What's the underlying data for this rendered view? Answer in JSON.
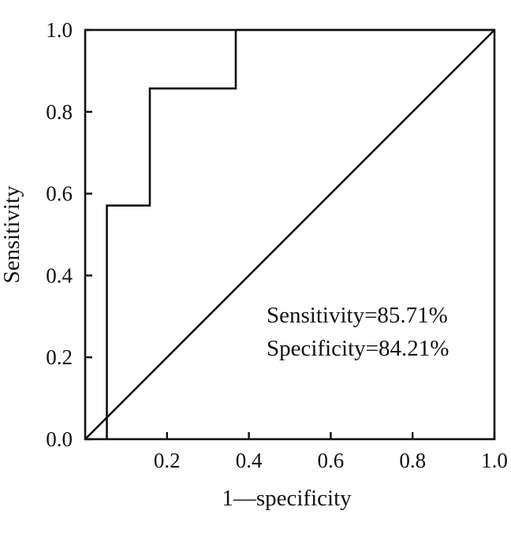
{
  "chart_data": {
    "type": "line",
    "title": "",
    "xlabel": "1—specificity",
    "ylabel": "Sensitivity",
    "xlim": [
      0,
      1
    ],
    "ylim": [
      0,
      1
    ],
    "x_ticks": [
      0.2,
      0.4,
      0.6,
      0.8,
      1.0
    ],
    "x_tick_labels": [
      "0.2",
      "0.4",
      "0.6",
      "0.8",
      "1.0"
    ],
    "y_ticks": [
      0.0,
      0.2,
      0.4,
      0.6,
      0.8,
      1.0
    ],
    "y_tick_labels": [
      "0.0",
      "0.2",
      "0.4",
      "0.6",
      "0.8",
      "1.0"
    ],
    "grid": false,
    "legend": "none",
    "series": [
      {
        "x": [
          0.053,
          0.053,
          0.158,
          0.158,
          0.368,
          0.368,
          1.0
        ],
        "y": [
          0.0,
          0.571,
          0.571,
          0.857,
          0.857,
          1.0,
          1.0
        ]
      },
      {
        "x": [
          0.0,
          1.0
        ],
        "y": [
          0.0,
          1.0
        ]
      }
    ],
    "annotations": [
      "Sensitivity=85.71%",
      "Specificity=84.21%"
    ],
    "colors": {
      "line": "#111111",
      "axis": "#111111"
    }
  }
}
